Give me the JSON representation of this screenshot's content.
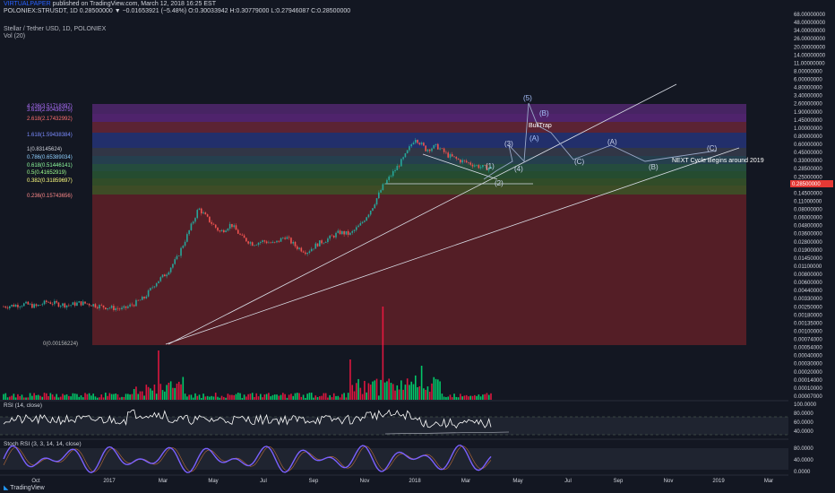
{
  "header": {
    "line1_author": "VIRTUALPAPER",
    "line1_rest": " published on TradingView.com, March 12, 2018 16:25 EST",
    "line2": "POLONIEX:STRUSDT, 1D  0.28500000 ▼ −0.01653921 (−5.48%)  O:0.30033942  H:0.30779000  L:0.27946087  C:0.28500000",
    "line3": "Stellar / Tether USD, 1D, POLONIEX",
    "line4": "Vol (20)"
  },
  "panes": {
    "rsi_label": "RSI (14, close)",
    "stoch_label": "Stoch RSI (3, 3, 14, 14, close)"
  },
  "branding": {
    "logo_text": "TradingView"
  },
  "colors": {
    "background": "#131722",
    "up": "#26a69a",
    "down": "#ef5350",
    "vol_up": "#00e676",
    "vol_down": "#ff1744",
    "stoch_k": "#7b61ff",
    "rsi": "#ffffff",
    "fib_red_zone": "#8b2b30",
    "price_tag": "#e53935"
  },
  "chart_data": [
    {
      "type": "candlestick",
      "symbol": "POLONIEX:STRUSDT",
      "title": "Stellar / Tether USD, 1D, POLONIEX",
      "scale": "log",
      "ylim": [
        0.0001,
        68.0
      ],
      "current_price": "0.28500000",
      "y_ticks": [
        "68.00000000",
        "48.00000000",
        "34.00000000",
        "26.00000000",
        "20.00000000",
        "14.00000000",
        "11.00000000",
        "8.00000000",
        "6.00000000",
        "4.80000000",
        "3.40000000",
        "2.60000000",
        "1.90000000",
        "1.45000000",
        "1.00000000",
        "0.80000000",
        "0.60000000",
        "0.45000000",
        "0.33000000",
        "0.28500000",
        "0.25000000",
        "0.19000000",
        "0.14500000",
        "0.11000000",
        "0.08000000",
        "0.06000000",
        "0.04800000",
        "0.03600000",
        "0.02800000",
        "0.01900000",
        "0.01450000",
        "0.01100000",
        "0.00800000",
        "0.00600000",
        "0.00440000",
        "0.00330000",
        "0.00250000",
        "0.00180000",
        "0.00135000",
        "0.00100000",
        "0.00074000",
        "0.00054000",
        "0.00040000",
        "0.00030000",
        "0.00020000",
        "0.00014000",
        "0.00010000",
        "0.00007000"
      ],
      "x_ticks": [
        "Oct",
        "2017",
        "Mar",
        "May",
        "Jul",
        "Sep",
        "Nov",
        "2018",
        "Mar",
        "May",
        "Jul",
        "Sep",
        "Nov",
        "2019",
        "Mar"
      ],
      "approx_close_series": [
        0.0022,
        0.0023,
        0.0024,
        0.0022,
        0.0026,
        0.0024,
        0.0023,
        0.0025,
        0.0024,
        0.0022,
        0.0021,
        0.002,
        0.0024,
        0.003,
        0.005,
        0.007,
        0.012,
        0.028,
        0.07,
        0.045,
        0.03,
        0.04,
        0.025,
        0.02,
        0.022,
        0.02,
        0.026,
        0.018,
        0.015,
        0.02,
        0.024,
        0.03,
        0.028,
        0.04,
        0.07,
        0.15,
        0.25,
        0.42,
        0.84,
        0.55,
        0.62,
        0.45,
        0.38,
        0.34,
        0.3,
        0.285
      ],
      "fib_levels": [
        {
          "label": "4.236(3.51718397)",
          "value": 3.517
        },
        {
          "label": "3.618(2.80436375)",
          "value": 2.804
        },
        {
          "label": "2.618(2.17432992)",
          "value": 2.174
        },
        {
          "label": "1.618(1.59438384)",
          "value": 1.594
        },
        {
          "label": "1(0.83145624)",
          "value": 0.831
        },
        {
          "label": "0.786(0.65389034)",
          "value": 0.654
        },
        {
          "label": "0.618(0.51446141)",
          "value": 0.514
        },
        {
          "label": "0.5(0.41652919)",
          "value": 0.417
        },
        {
          "label": "0.382(0.31859697)",
          "value": 0.319
        },
        {
          "label": "0.236(0.15743656)",
          "value": 0.157
        },
        {
          "label": "0(0.00156224)",
          "value": 0.00156
        }
      ],
      "annotations": [
        "(5)",
        "(B)",
        "BullTrap",
        "(A)",
        "(3)",
        "(1)",
        "(4)",
        "(2)",
        "(A)",
        "(C)",
        "(B)",
        "(C)",
        "NEXT Cycle Begins around 2019"
      ]
    },
    {
      "type": "bar",
      "name": "Vol (20)"
    },
    {
      "type": "line",
      "name": "RSI (14, close)",
      "ylim": [
        0,
        100
      ],
      "y_ticks": [
        "100.0000",
        "80.0000",
        "60.0000",
        "40.0000"
      ]
    },
    {
      "type": "line",
      "name": "Stoch RSI (3, 3, 14, 14, close)",
      "ylim": [
        0,
        100
      ],
      "y_ticks": [
        "80.0000",
        "40.0000",
        "0.0000"
      ]
    }
  ]
}
